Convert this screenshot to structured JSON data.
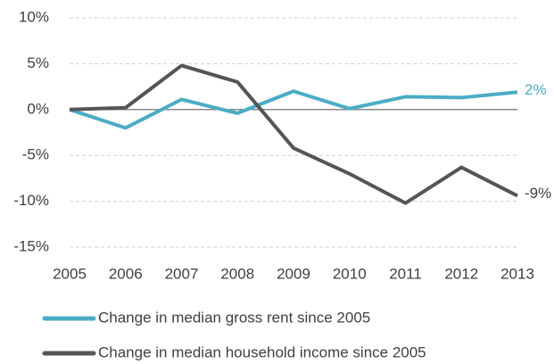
{
  "chart_data": {
    "type": "line",
    "x": [
      2005,
      2006,
      2007,
      2008,
      2009,
      2010,
      2011,
      2012,
      2013
    ],
    "xlim": [
      2005,
      2013
    ],
    "xticks": [
      2005,
      2006,
      2007,
      2008,
      2009,
      2010,
      2011,
      2012,
      2013
    ],
    "ylim": [
      -15,
      10
    ],
    "yticks": [
      {
        "value": -15,
        "label": "-15%"
      },
      {
        "value": -10,
        "label": "-10%"
      },
      {
        "value": -5,
        "label": "-5%"
      },
      {
        "value": 0,
        "label": "0%"
      },
      {
        "value": 5,
        "label": "5%"
      },
      {
        "value": 10,
        "label": "10%"
      }
    ],
    "grid": true,
    "legend": "bottom",
    "series": [
      {
        "name": "Change in median gross rent since 2005",
        "color": "#4bacc6",
        "values": [
          0,
          -2,
          1.1,
          -0.4,
          2.0,
          0.1,
          1.4,
          1.3,
          1.9
        ],
        "value_labels": [
          null,
          null,
          null,
          null,
          null,
          null,
          null,
          null,
          "2%"
        ]
      },
      {
        "name": "Change in median household income since 2005",
        "color": "#555555",
        "values": [
          0,
          0.2,
          4.8,
          3.0,
          -4.2,
          -7.0,
          -10.2,
          -6.3,
          -9.4
        ],
        "value_labels": [
          null,
          null,
          null,
          null,
          null,
          null,
          null,
          null,
          "-9%"
        ]
      }
    ]
  }
}
